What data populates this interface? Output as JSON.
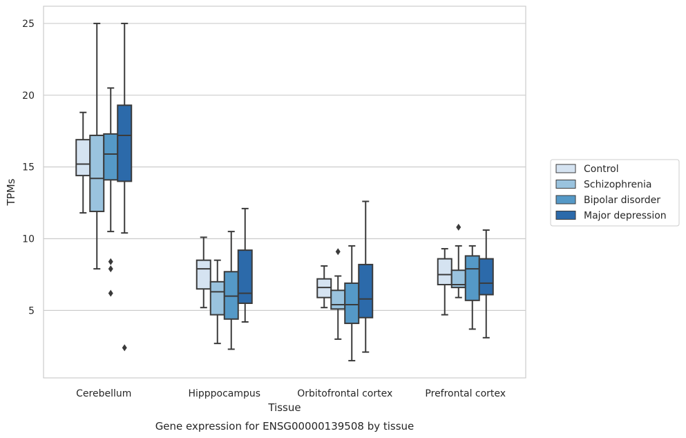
{
  "chart_data": {
    "type": "box",
    "caption": "Gene expression for ENSG00000139508 by tissue",
    "xlabel": "Tissue",
    "ylabel": "TPMs",
    "ylim": [
      0.3,
      26.2
    ],
    "yticks": [
      5,
      10,
      15,
      20,
      25
    ],
    "grid": "horizontal",
    "legend_position": "right",
    "categories": [
      "Cerebellum",
      "Hipppocampus",
      "Orbitofrontal cortex",
      "Prefrontal cortex"
    ],
    "series": [
      {
        "name": "Control",
        "color": "#d5e3f1",
        "boxes": [
          {
            "whislo": 11.8,
            "q1": 14.4,
            "med": 15.2,
            "q3": 16.9,
            "whishi": 18.8,
            "fliers": []
          },
          {
            "whislo": 5.2,
            "q1": 6.5,
            "med": 7.9,
            "q3": 8.5,
            "whishi": 10.1,
            "fliers": []
          },
          {
            "whislo": 5.2,
            "q1": 5.9,
            "med": 6.6,
            "q3": 7.2,
            "whishi": 8.1,
            "fliers": []
          },
          {
            "whislo": 4.7,
            "q1": 6.8,
            "med": 7.5,
            "q3": 8.6,
            "whishi": 9.3,
            "fliers": []
          }
        ]
      },
      {
        "name": "Schizophrenia",
        "color": "#9ac3de",
        "boxes": [
          {
            "whislo": 7.9,
            "q1": 11.9,
            "med": 14.2,
            "q3": 17.2,
            "whishi": 25.0,
            "fliers": []
          },
          {
            "whislo": 2.7,
            "q1": 4.7,
            "med": 6.3,
            "q3": 7.0,
            "whishi": 8.5,
            "fliers": []
          },
          {
            "whislo": 3.0,
            "q1": 5.1,
            "med": 5.4,
            "q3": 6.4,
            "whishi": 7.4,
            "fliers": [
              9.1
            ]
          },
          {
            "whislo": 5.9,
            "q1": 6.6,
            "med": 6.8,
            "q3": 7.8,
            "whishi": 9.5,
            "fliers": [
              10.8
            ]
          }
        ]
      },
      {
        "name": "Bipolar disorder",
        "color": "#5599c7",
        "boxes": [
          {
            "whislo": 10.5,
            "q1": 14.1,
            "med": 15.9,
            "q3": 17.3,
            "whishi": 20.5,
            "fliers": [
              6.2,
              7.9,
              8.4
            ]
          },
          {
            "whislo": 2.3,
            "q1": 4.4,
            "med": 6.0,
            "q3": 7.7,
            "whishi": 10.5,
            "fliers": []
          },
          {
            "whislo": 1.5,
            "q1": 4.1,
            "med": 5.4,
            "q3": 6.9,
            "whishi": 9.5,
            "fliers": []
          },
          {
            "whislo": 3.7,
            "q1": 5.7,
            "med": 7.9,
            "q3": 8.8,
            "whishi": 9.5,
            "fliers": []
          }
        ]
      },
      {
        "name": "Major depression",
        "color": "#2c6aaa",
        "boxes": [
          {
            "whislo": 10.4,
            "q1": 14.0,
            "med": 17.2,
            "q3": 19.3,
            "whishi": 25.0,
            "fliers": [
              2.4
            ]
          },
          {
            "whislo": 4.2,
            "q1": 5.5,
            "med": 6.2,
            "q3": 9.2,
            "whishi": 12.1,
            "fliers": []
          },
          {
            "whislo": 2.1,
            "q1": 4.5,
            "med": 5.8,
            "q3": 8.2,
            "whishi": 12.6,
            "fliers": []
          },
          {
            "whislo": 3.1,
            "q1": 6.1,
            "med": 6.9,
            "q3": 8.6,
            "whishi": 10.6,
            "fliers": []
          }
        ]
      }
    ]
  }
}
